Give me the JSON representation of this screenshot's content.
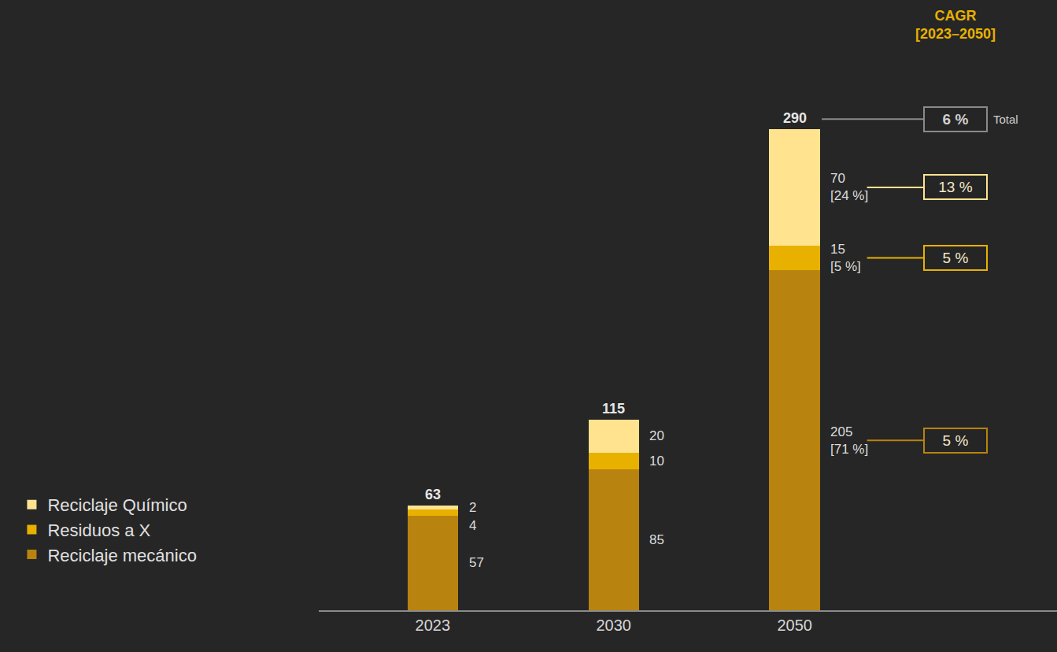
{
  "chart_data": {
    "type": "bar",
    "stacked": true,
    "data_labels": true,
    "tick_labels": "x",
    "legend": "lower left",
    "categories": [
      "2023",
      "2030",
      "2050"
    ],
    "ylim": [
      0,
      368
    ],
    "series": [
      {
        "name": "Reciclaje mecánico",
        "color": "#B8830F",
        "values": [
          57,
          85,
          205
        ],
        "share_labels": [
          null,
          null,
          "[71 %]"
        ],
        "cagr": {
          "value": 5,
          "label": "5 %"
        }
      },
      {
        "name": "Residuos a X",
        "color": "#E8B100",
        "values": [
          4,
          10,
          15
        ],
        "share_labels": [
          null,
          null,
          "[5 %]"
        ],
        "cagr": {
          "value": 5,
          "label": "5 %"
        }
      },
      {
        "name": "Reciclaje Químico",
        "color": "#FFE38F",
        "values": [
          2,
          20,
          70
        ],
        "share_labels": [
          null,
          null,
          "[24 %]"
        ],
        "cagr": {
          "value": 13,
          "label": "13 %"
        }
      }
    ],
    "totals": [
      63,
      115,
      290
    ],
    "total_cagr": {
      "value": 6,
      "label": "6 %"
    },
    "total_label": "Total",
    "cagr_title": [
      "CAGR",
      "[2023–2050]"
    ]
  }
}
